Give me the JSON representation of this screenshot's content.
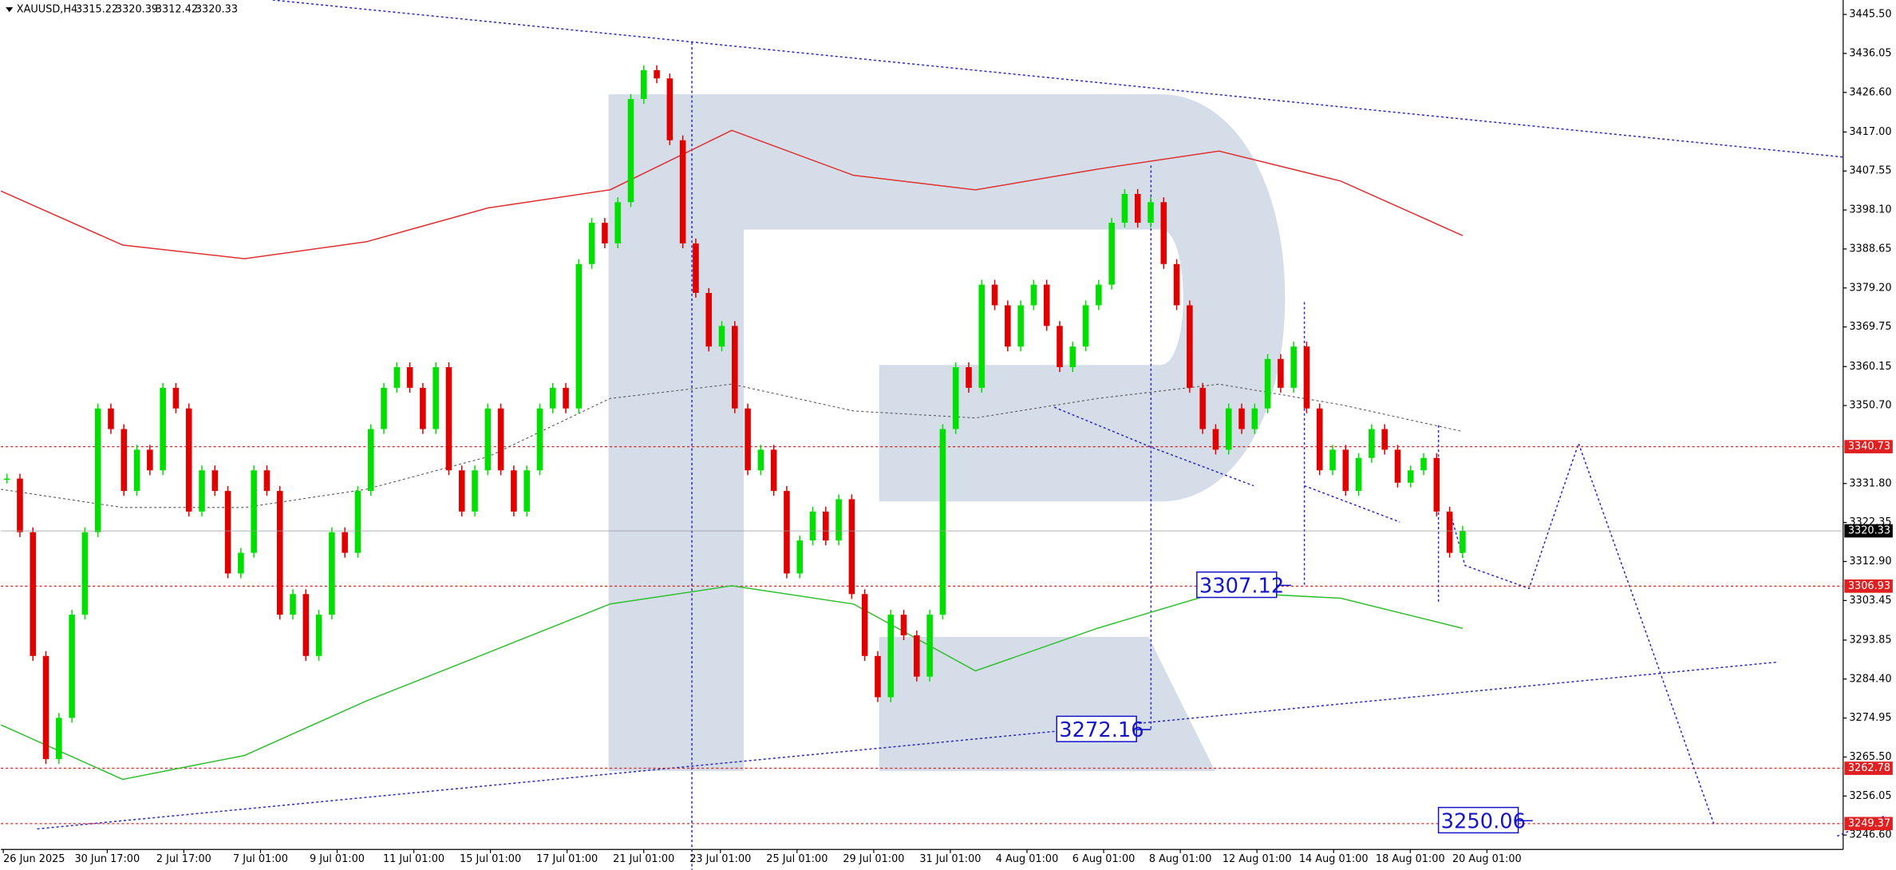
{
  "chart_data": {
    "type": "candlestick",
    "symbol": "XAUUSD,H4",
    "ohlc": [
      3315.22,
      3320.39,
      3312.42,
      3320.33
    ],
    "up_color": "#00e000",
    "down_color": "#e00000",
    "close": [
      3333,
      3320,
      3290,
      3265,
      3275,
      3300,
      3320,
      3350,
      3345,
      3330,
      3340,
      3335,
      3355,
      3350,
      3325,
      3335,
      3330,
      3310,
      3315,
      3335,
      3330,
      3300,
      3305,
      3290,
      3300,
      3320,
      3315,
      3330,
      3345,
      3355,
      3360,
      3355,
      3345,
      3360,
      3335,
      3325,
      3335,
      3350,
      3335,
      3325,
      3335,
      3350,
      3355,
      3350,
      3385,
      3395,
      3390,
      3400,
      3425,
      3432,
      3430,
      3415,
      3390,
      3378,
      3365,
      3370,
      3350,
      3335,
      3340,
      3330,
      3310,
      3318,
      3325,
      3318,
      3328,
      3305,
      3290,
      3280,
      3300,
      3295,
      3285,
      3300,
      3345,
      3360,
      3355,
      3380,
      3375,
      3365,
      3375,
      3380,
      3370,
      3360,
      3365,
      3375,
      3380,
      3395,
      3402,
      3395,
      3400,
      3385,
      3375,
      3355,
      3345,
      3340,
      3350,
      3345,
      3350,
      3362,
      3355,
      3365,
      3350,
      3335,
      3340,
      3330,
      3338,
      3345,
      3340,
      3332,
      3335,
      3338,
      3325,
      3315,
      3320.33
    ],
    "overlays": [
      {
        "color": "#e03030",
        "dashed": false,
        "values": [
          3402.7,
          3389.6,
          3386.3,
          3390.4,
          3398.6,
          3403.0,
          3417.4,
          3406.5,
          3403.0,
          3408.0,
          3412.4,
          3405.1,
          3391.9
        ]
      },
      {
        "color": "#555555",
        "dashed": true,
        "values": [
          3330.4,
          3326.0,
          3326.0,
          3330.4,
          3338.3,
          3352.4,
          3355.9,
          3349.4,
          3347.7,
          3352.4,
          3355.9,
          3350.9,
          3344.4
        ]
      },
      {
        "color": "#30c030",
        "dashed": false,
        "values": [
          3273.3,
          3260.1,
          3265.9,
          3279.1,
          3290.8,
          3302.6,
          3307.0,
          3302.6,
          3286.4,
          3296.7,
          3305.5,
          3304.0,
          3296.7
        ]
      }
    ],
    "ylim": [
      3243.1,
      3449.0
    ],
    "yticks": [
      {
        "value": 3445.5,
        "label": "3445.50"
      },
      {
        "value": 3436.05,
        "label": "3436.05"
      },
      {
        "value": 3426.6,
        "label": "3426.60"
      },
      {
        "value": 3417,
        "label": "3417.00"
      },
      {
        "value": 3407.55,
        "label": "3407.55"
      },
      {
        "value": 3398.1,
        "label": "3398.10"
      },
      {
        "value": 3388.65,
        "label": "3388.65"
      },
      {
        "value": 3379.2,
        "label": "3379.20"
      },
      {
        "value": 3369.75,
        "label": "3369.75"
      },
      {
        "value": 3360.15,
        "label": "3360.15"
      },
      {
        "value": 3350.7,
        "label": "3350.70"
      },
      {
        "value": 3331.8,
        "label": "3331.80"
      },
      {
        "value": 3322.35,
        "label": "3322.35"
      },
      {
        "value": 3312.9,
        "label": "3312.90"
      },
      {
        "value": 3303.45,
        "label": "3303.45"
      },
      {
        "value": 3293.85,
        "label": "3293.85"
      },
      {
        "value": 3284.4,
        "label": "3284.40"
      },
      {
        "value": 3274.95,
        "label": "3274.95"
      },
      {
        "value": 3265.5,
        "label": "3265.50"
      },
      {
        "value": 3256.05,
        "label": "3256.05"
      },
      {
        "value": 3246.6,
        "label": "3246.60"
      }
    ],
    "levels": [
      3340.73,
      3306.93,
      3262.78,
      3249.37
    ],
    "last_price": 3320.33,
    "annotations": [
      3307.12,
      3272.16,
      3250.06
    ],
    "xlabels": [
      "26 Jun 2025",
      "30 Jun 17:00",
      "2 Jul 17:00",
      "7 Jul 01:00",
      "9 Jul 01:00",
      "11 Jul 01:00",
      "15 Jul 01:00",
      "17 Jul 01:00",
      "21 Jul 01:00",
      "23 Jul 01:00",
      "25 Jul 01:00",
      "29 Jul 01:00",
      "31 Jul 01:00",
      "4 Aug 01:00",
      "6 Aug 01:00",
      "8 Aug 01:00",
      "12 Aug 01:00",
      "14 Aug 01:00",
      "18 Aug 01:00",
      "20 Aug 01:00"
    ]
  }
}
